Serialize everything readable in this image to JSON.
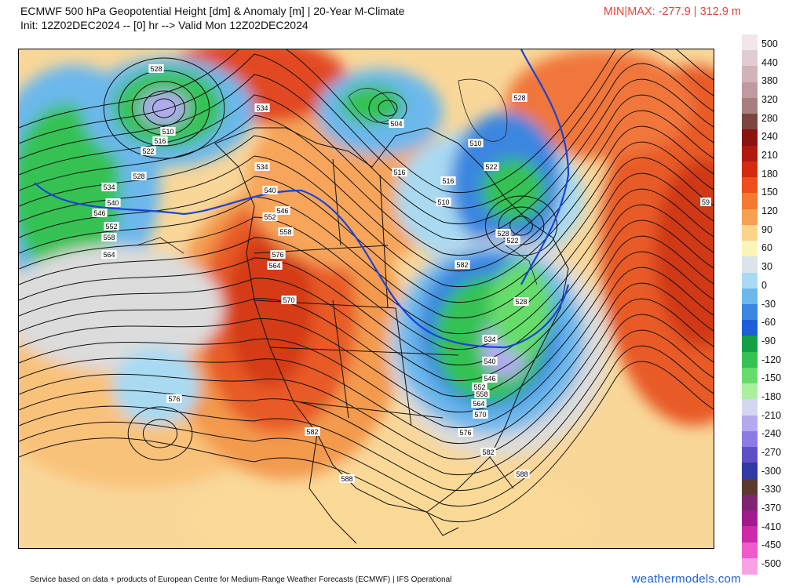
{
  "header": {
    "title_line1": "ECMWF 500 hPa Geopotential Height [dm] & Anomaly [m] | 20-Year M-Climate",
    "title_line2": "Init: 12Z02DEC2024 -- [0] hr --> Valid Mon 12Z02DEC2024",
    "minmax": "MIN|MAX: -277.9 | 312.9 m"
  },
  "footer": {
    "credit": "Service based on data + products of European Centre for Medium-Range Weather Forecasts (ECMWF) | IFS Operational",
    "brand": "weathermodels.com"
  },
  "legend": {
    "labels": [
      "500",
      "440",
      "380",
      "320",
      "280",
      "240",
      "210",
      "180",
      "150",
      "120",
      "90",
      "60",
      "30",
      "0",
      "-30",
      "-60",
      "-90",
      "-120",
      "-150",
      "-180",
      "-210",
      "-240",
      "-270",
      "-300",
      "-330",
      "-370",
      "-410",
      "-450",
      "-500"
    ],
    "colors": [
      "#f2e6ea",
      "#e0ccd2",
      "#d1b3b8",
      "#c09aa0",
      "#a87f80",
      "#7d4540",
      "#8a1410",
      "#b01a10",
      "#d42a10",
      "#ee4f1c",
      "#f37a30",
      "#f7a050",
      "#fbd48a",
      "#fdf5b8",
      "#dde3ea",
      "#a9daf2",
      "#6cb8ec",
      "#3a86e0",
      "#1c5fd6",
      "#13a046",
      "#36c252",
      "#66dd6a",
      "#a8f0a0",
      "#d5d7f2",
      "#b3aaf0",
      "#8c7be6",
      "#6050c8",
      "#303aa0",
      "#5b3a2e",
      "#7e2470",
      "#a21a8e",
      "#cc2aa8",
      "#ee5ccc",
      "#f8a2e6"
    ],
    "icons": {
      "color_bar": "anomaly-color-bar-icon"
    }
  },
  "map": {
    "contour_labels": [
      "528",
      "534",
      "510",
      "516",
      "522",
      "528",
      "534",
      "540",
      "546",
      "552",
      "558",
      "564",
      "504",
      "510",
      "516",
      "522",
      "528",
      "534",
      "540",
      "546",
      "552",
      "558",
      "564",
      "570",
      "576",
      "576",
      "582",
      "582",
      "588",
      "588",
      "522",
      "528",
      "534",
      "540",
      "546",
      "552",
      "558",
      "564",
      "570",
      "576",
      "582",
      "516",
      "510",
      "528",
      "59"
    ],
    "icons": {
      "basemap": "north-america-map-icon"
    }
  }
}
